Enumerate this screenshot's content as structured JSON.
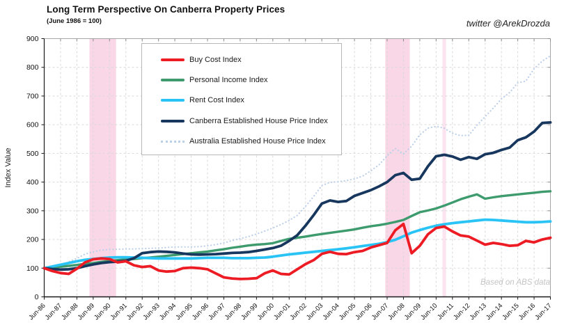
{
  "header": {
    "title": "Long Term Perspective On Canberra Property Prices",
    "subtitle": "(June 1986 = 100)",
    "attribution": "twitter @ArekDrozda"
  },
  "watermark": "Based on ABS data",
  "chart_data": {
    "type": "line",
    "title": "Long Term Perspective On Canberra Property Prices",
    "subtitle": "(June 1986 = 100)",
    "xlabel": "",
    "ylabel": "Index Value",
    "ylim": [
      0,
      900
    ],
    "yticks": [
      0,
      100,
      200,
      300,
      400,
      500,
      600,
      700,
      800,
      900
    ],
    "grid": "dashed",
    "legend_position": "upper-left-inset",
    "xtick_labels": [
      "Jun-86",
      "Jun-87",
      "Jun-88",
      "Jun-89",
      "Jun-90",
      "Jun-91",
      "Jun-92",
      "Jun-93",
      "Jun-94",
      "Jun-95",
      "Jun-96",
      "Jun-97",
      "Jun-98",
      "Jun-99",
      "Jun-00",
      "Jun-01",
      "Jun-02",
      "Jun-03",
      "Jun-04",
      "Jun-05",
      "Jun-06",
      "Jun-07",
      "Jun-08",
      "Jun-09",
      "Jun-10",
      "Jun-11",
      "Jun-12",
      "Jun-13",
      "Jun-14",
      "Jun-15",
      "Jun-16",
      "Jun-17"
    ],
    "xtick_years": [
      1986.5,
      1987.5,
      1988.5,
      1989.5,
      1990.5,
      1991.5,
      1992.5,
      1993.5,
      1994.5,
      1995.5,
      1996.5,
      1997.5,
      1998.5,
      1999.5,
      2000.5,
      2001.5,
      2002.5,
      2003.5,
      2004.5,
      2005.5,
      2006.5,
      2007.5,
      2008.5,
      2009.5,
      2010.5,
      2011.5,
      2012.5,
      2013.5,
      2014.5,
      2015.5,
      2016.5,
      2017.5
    ],
    "bands": [
      {
        "label": "recession-band-1989-90",
        "x1": 1989.27,
        "x2": 1990.9,
        "color": "#F9D7E7"
      },
      {
        "label": "recession-band-2007-08",
        "x1": 2007.39,
        "x2": 2008.89,
        "color": "#F9D7E7"
      },
      {
        "label": "band-2010-11",
        "x1": 2010.89,
        "x2": 2011.11,
        "color": "#FBE3F0"
      }
    ],
    "x": [
      1986.5,
      1987,
      1987.5,
      1988,
      1988.5,
      1989,
      1989.5,
      1990,
      1990.5,
      1991,
      1991.5,
      1992,
      1992.5,
      1993,
      1993.5,
      1994,
      1994.5,
      1995,
      1995.5,
      1996,
      1996.5,
      1997,
      1997.5,
      1998,
      1998.5,
      1999,
      1999.5,
      2000,
      2000.5,
      2001,
      2001.5,
      2002,
      2002.5,
      2003,
      2003.5,
      2004,
      2004.5,
      2005,
      2005.5,
      2006,
      2006.5,
      2007,
      2007.5,
      2008,
      2008.5,
      2009,
      2009.5,
      2010,
      2010.5,
      2011,
      2011.5,
      2012,
      2012.5,
      2013,
      2013.5,
      2014,
      2014.5,
      2015,
      2015.5,
      2016,
      2016.5,
      2017,
      2017.5
    ],
    "series": [
      {
        "name": "Buy Cost Index",
        "color": "#ED1C24",
        "width": 3.8,
        "style": "solid",
        "values": [
          100,
          90,
          83,
          80,
          98,
          120,
          131,
          134,
          132,
          120,
          124,
          110,
          104,
          107,
          92,
          88,
          90,
          100,
          102,
          100,
          96,
          82,
          68,
          64,
          62,
          63,
          65,
          82,
          92,
          80,
          78,
          96,
          114,
          128,
          150,
          157,
          150,
          149,
          156,
          160,
          172,
          180,
          188,
          232,
          254,
          152,
          178,
          218,
          240,
          245,
          228,
          214,
          210,
          196,
          182,
          188,
          184,
          178,
          180,
          195,
          190,
          200,
          206
        ]
      },
      {
        "name": "Personal Income Index",
        "color": "#3E9B6E",
        "width": 3.4,
        "style": "solid",
        "values": [
          100,
          102,
          105,
          108,
          111,
          115,
          118,
          122,
          125,
          128,
          130,
          132,
          135,
          137,
          140,
          143,
          146,
          149,
          152,
          155,
          158,
          162,
          166,
          171,
          175,
          179,
          182,
          184,
          187,
          195,
          202,
          206,
          210,
          215,
          219,
          223,
          227,
          231,
          235,
          241,
          246,
          250,
          255,
          261,
          268,
          282,
          295,
          301,
          308,
          318,
          329,
          340,
          349,
          357,
          342,
          347,
          351,
          354,
          357,
          360,
          363,
          366,
          368
        ]
      },
      {
        "name": "Rent Cost Index",
        "color": "#29C4F5",
        "width": 3.8,
        "style": "solid",
        "values": [
          100,
          106,
          112,
          118,
          124,
          129,
          132,
          135,
          137,
          138,
          138,
          137,
          136,
          135,
          134,
          134,
          134,
          134,
          134,
          135,
          136,
          136,
          136,
          135,
          135,
          135,
          136,
          137,
          140,
          144,
          148,
          151,
          154,
          157,
          160,
          163,
          166,
          169,
          173,
          177,
          181,
          185,
          191,
          199,
          211,
          224,
          233,
          241,
          248,
          253,
          257,
          260,
          263,
          266,
          269,
          268,
          266,
          264,
          262,
          260,
          260,
          261,
          263
        ]
      },
      {
        "name": "Canberra Established House Price Index",
        "color": "#17375E",
        "width": 3.8,
        "style": "solid",
        "values": [
          100,
          97,
          95,
          96,
          100,
          107,
          113,
          118,
          121,
          123,
          126,
          135,
          152,
          156,
          158,
          157,
          155,
          151,
          148,
          147,
          148,
          149,
          151,
          153,
          154,
          156,
          160,
          165,
          170,
          178,
          195,
          215,
          248,
          285,
          325,
          336,
          331,
          334,
          352,
          362,
          372,
          385,
          400,
          424,
          432,
          408,
          412,
          455,
          490,
          495,
          489,
          478,
          487,
          481,
          497,
          502,
          512,
          520,
          546,
          556,
          576,
          606,
          608
        ]
      },
      {
        "name": "Australia Established House Price Index",
        "color": "#BCCFE8",
        "width": 2.2,
        "style": "dotted",
        "values": [
          100,
          104,
          110,
          122,
          134,
          149,
          157,
          163,
          165,
          166,
          167,
          167,
          168,
          169,
          170,
          172,
          174,
          174,
          174,
          175,
          178,
          182,
          188,
          196,
          203,
          210,
          219,
          229,
          240,
          252,
          266,
          284,
          315,
          350,
          388,
          399,
          401,
          405,
          411,
          421,
          439,
          460,
          492,
          517,
          498,
          525,
          565,
          588,
          594,
          588,
          570,
          562,
          563,
          598,
          628,
          658,
          690,
          712,
          746,
          752,
          795,
          822,
          840
        ]
      }
    ]
  }
}
